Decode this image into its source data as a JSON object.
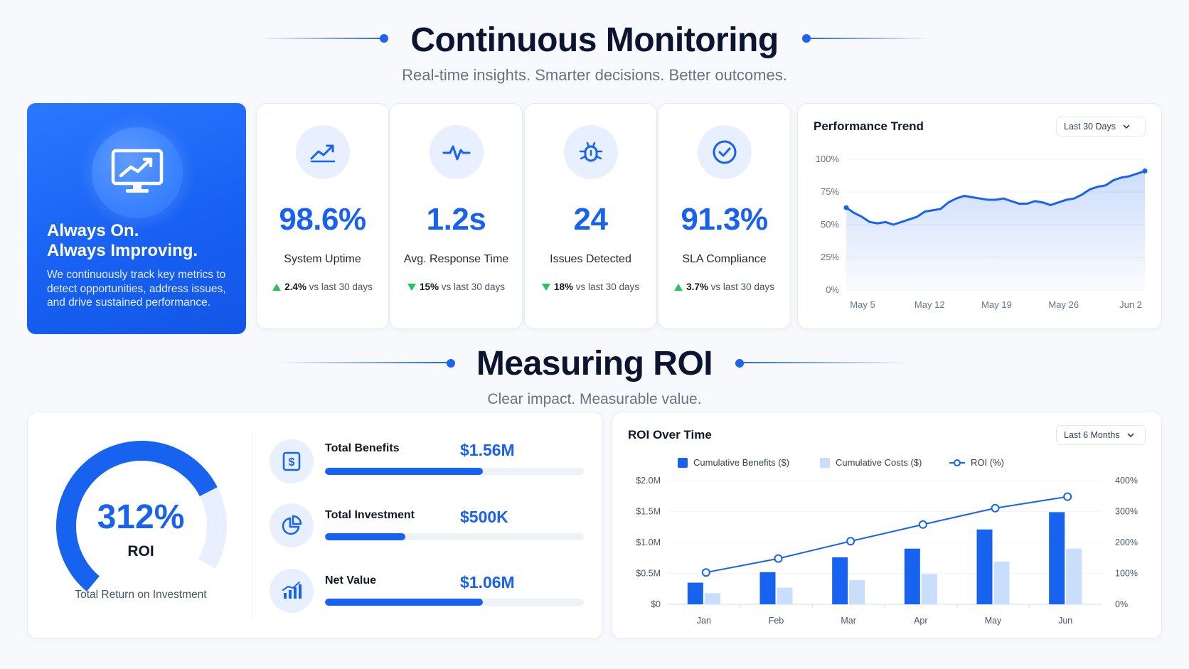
{
  "monitoring": {
    "title": "Continuous Monitoring",
    "subtitle": "Real-time insights. Smarter decisions. Better outcomes."
  },
  "hero": {
    "icon": "monitor-chart-icon",
    "heading_line1": "Always On.",
    "heading_line2": "Always Improving.",
    "body": "We continuously track key metrics to detect opportunities, address issues, and drive sustained performance."
  },
  "kpis": [
    {
      "icon": "trend-up-icon",
      "value": "98.6%",
      "label": "System Uptime",
      "change": "2.4%",
      "direction": "up",
      "suffix": "vs last 30 days"
    },
    {
      "icon": "pulse-icon",
      "value": "1.2s",
      "label": "Avg. Response Time",
      "change": "15%",
      "direction": "down",
      "suffix": "vs last 30 days"
    },
    {
      "icon": "bug-icon",
      "value": "24",
      "label": "Issues Detected",
      "change": "18%",
      "direction": "down",
      "suffix": "vs last 30 days"
    },
    {
      "icon": "check-circle-icon",
      "value": "91.3%",
      "label": "SLA Compliance",
      "change": "3.7%",
      "direction": "up",
      "suffix": "vs last 30 days"
    }
  ],
  "colors": {
    "primary": "#1862f0",
    "light": "#c9ddfc",
    "positive": "#22c55e"
  },
  "performance": {
    "title": "Performance Trend",
    "range": "Last 30 Days"
  },
  "roi_section": {
    "title": "Measuring ROI",
    "subtitle": "Clear impact. Measurable value."
  },
  "gauge": {
    "value": "312%",
    "label": "ROI",
    "caption": "Total Return on Investment",
    "fill_fraction": 0.78
  },
  "metrics": [
    {
      "icon": "dollar-document-icon",
      "name": "Total Benefits",
      "value": "$1.56M",
      "fill_fraction": 0.61
    },
    {
      "icon": "pie-chart-icon",
      "name": "Total Investment",
      "value": "$500K",
      "fill_fraction": 0.31
    },
    {
      "icon": "bar-growth-icon",
      "name": "Net Value",
      "value": "$1.06M",
      "fill_fraction": 0.61
    }
  ],
  "roi_over_time": {
    "title": "ROI Over Time",
    "range": "Last 6 Months"
  },
  "chart_data": [
    {
      "type": "area",
      "title": "Performance Trend",
      "x_ticks": [
        "May 5",
        "May 12",
        "May 19",
        "May 26",
        "Jun 2"
      ],
      "y_ticks": [
        "0%",
        "25%",
        "50%",
        "75%",
        "100%"
      ],
      "ylim": [
        0,
        100
      ],
      "grid": true,
      "series": [
        {
          "values": [
            63,
            59,
            56,
            52,
            51,
            52,
            50,
            52,
            54,
            56,
            60,
            61,
            62,
            67,
            70,
            72,
            71,
            70,
            69,
            69,
            70,
            68,
            66,
            66,
            68,
            67,
            65,
            67,
            69,
            70,
            73,
            77,
            79,
            80,
            84,
            86,
            87,
            89,
            91
          ]
        }
      ]
    },
    {
      "type": "bar",
      "title": "ROI Over Time",
      "categories": [
        "Jan",
        "Feb",
        "Mar",
        "Apr",
        "May",
        "Jun"
      ],
      "y_left_ticks": [
        "$0",
        "$0.5M",
        "$1.0M",
        "$1.5M",
        "$2.0M"
      ],
      "y_right_ticks": [
        "0%",
        "100%",
        "200%",
        "300%",
        "400%"
      ],
      "ylim_left": [
        0,
        2.0
      ],
      "ylim_right": [
        0,
        400
      ],
      "legend_position": "top",
      "series": [
        {
          "name": "Cumulative Benefits ($)",
          "kind": "bar",
          "color": "#1862f0",
          "values": [
            0.35,
            0.52,
            0.76,
            0.9,
            1.21,
            1.49
          ]
        },
        {
          "name": "Cumulative Costs ($)",
          "kind": "bar",
          "color": "#c9ddfc",
          "values": [
            0.18,
            0.27,
            0.39,
            0.49,
            0.69,
            0.9
          ]
        },
        {
          "name": "ROI (%)",
          "kind": "line",
          "color": "#1862f0",
          "values": [
            103,
            148,
            204,
            258,
            311,
            348
          ]
        }
      ]
    }
  ]
}
